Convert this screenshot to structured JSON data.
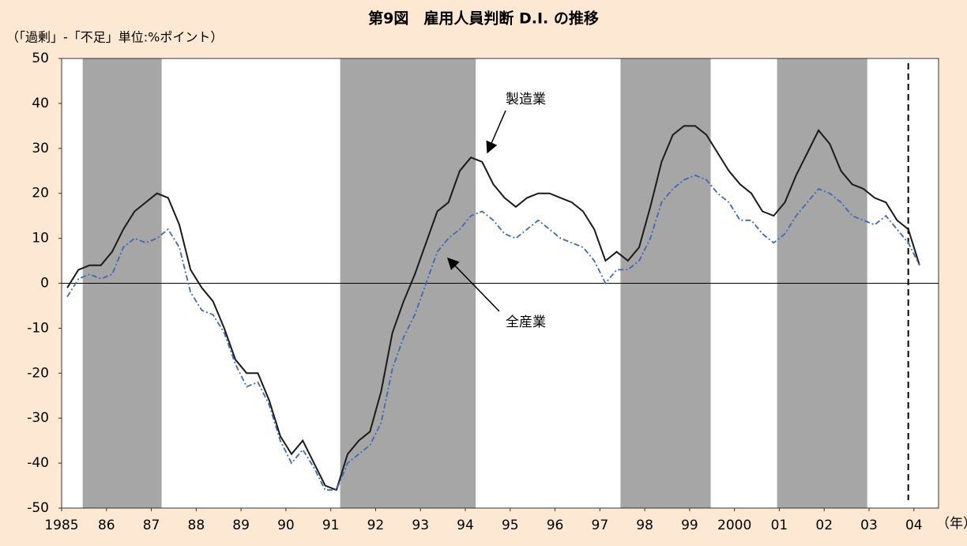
{
  "chart_data": {
    "type": "line",
    "title": "第9図　雇用人員判断 D.I. の推移",
    "ylabel": "（「過剰」-「不足」単位:%ポイント）",
    "xlabel": "（年）",
    "x": [
      1985.125,
      1985.375,
      1985.625,
      1985.875,
      1986.125,
      1986.375,
      1986.625,
      1986.875,
      1987.125,
      1987.375,
      1987.625,
      1987.875,
      1988.125,
      1988.375,
      1988.625,
      1988.875,
      1989.125,
      1989.375,
      1989.625,
      1989.875,
      1990.125,
      1990.375,
      1990.625,
      1990.875,
      1991.125,
      1991.375,
      1991.625,
      1991.875,
      1992.125,
      1992.375,
      1992.625,
      1992.875,
      1993.125,
      1993.375,
      1993.625,
      1993.875,
      1994.125,
      1994.375,
      1994.625,
      1994.875,
      1995.125,
      1995.375,
      1995.625,
      1995.875,
      1996.125,
      1996.375,
      1996.625,
      1996.875,
      1997.125,
      1997.375,
      1997.625,
      1997.875,
      1998.125,
      1998.375,
      1998.625,
      1998.875,
      1999.125,
      1999.375,
      1999.625,
      1999.875,
      2000.125,
      2000.375,
      2000.625,
      2000.875,
      2001.125,
      2001.375,
      2001.625,
      2001.875,
      2002.125,
      2002.375,
      2002.625,
      2002.875,
      2003.125,
      2003.375,
      2003.625,
      2003.875,
      2004.125
    ],
    "series": [
      {
        "name": "製造業",
        "color": "#1a1a1a",
        "dash": "solid",
        "values": [
          -1,
          3,
          4,
          4,
          7,
          12,
          16,
          18,
          20,
          19,
          13,
          3,
          -1,
          -4,
          -10,
          -17,
          -20,
          -20,
          -26,
          -34,
          -38,
          -35,
          -40,
          -45,
          -46,
          -38,
          -35,
          -33,
          -24,
          -11,
          -4,
          2,
          9,
          16,
          18,
          25,
          28,
          27,
          22,
          19,
          17,
          19,
          20,
          20,
          19,
          18,
          16,
          12,
          5,
          7,
          5,
          8,
          17,
          27,
          33,
          35,
          35,
          33,
          29,
          25,
          22,
          20,
          16,
          15,
          18,
          24,
          29,
          34,
          31,
          25,
          22,
          21,
          19,
          18,
          14,
          12,
          4
        ]
      },
      {
        "name": "全産業",
        "color": "#3d6ab5",
        "dash": "dashdot",
        "values": [
          -3,
          1,
          2,
          1,
          2,
          8,
          10,
          9,
          10,
          12,
          8,
          -2,
          -6,
          -7,
          -11,
          -18,
          -23,
          -22,
          -27,
          -35,
          -40,
          -37,
          -41,
          -46,
          -46,
          -40,
          -38,
          -36,
          -31,
          -19,
          -12,
          -7,
          0,
          7,
          10,
          12,
          15,
          16,
          14,
          11,
          10,
          12,
          14,
          12,
          10,
          9,
          8,
          5,
          0,
          3,
          3,
          5,
          10,
          18,
          21,
          23,
          24,
          23,
          20,
          18,
          14,
          14,
          11,
          9,
          11,
          15,
          18,
          21,
          20,
          18,
          15,
          14,
          13,
          15,
          12,
          9,
          4
        ]
      }
    ],
    "xlim": [
      1985,
      2004.55
    ],
    "ylim": [
      -50,
      50
    ],
    "xticks": [
      {
        "value": 1985,
        "label": "1985"
      },
      {
        "value": 1986,
        "label": "86"
      },
      {
        "value": 1987,
        "label": "87"
      },
      {
        "value": 1988,
        "label": "88"
      },
      {
        "value": 1989,
        "label": "89"
      },
      {
        "value": 1990,
        "label": "90"
      },
      {
        "value": 1991,
        "label": "91"
      },
      {
        "value": 1992,
        "label": "92"
      },
      {
        "value": 1993,
        "label": "93"
      },
      {
        "value": 1994,
        "label": "94"
      },
      {
        "value": 1995,
        "label": "95"
      },
      {
        "value": 1996,
        "label": "96"
      },
      {
        "value": 1997,
        "label": "97"
      },
      {
        "value": 1998,
        "label": "98"
      },
      {
        "value": 1999,
        "label": "99"
      },
      {
        "value": 2000,
        "label": "2000"
      },
      {
        "value": 2001,
        "label": "01"
      },
      {
        "value": 2002,
        "label": "02"
      },
      {
        "value": 2003,
        "label": "03"
      },
      {
        "value": 2004,
        "label": "04"
      }
    ],
    "yticks": [
      -50,
      -40,
      -30,
      -20,
      -10,
      0,
      10,
      20,
      30,
      40,
      50
    ],
    "bands": [
      [
        1985.47,
        1987.23
      ],
      [
        1991.21,
        1994.23
      ],
      [
        1997.46,
        1999.47
      ],
      [
        2000.95,
        2002.96
      ]
    ],
    "band_color": "#a6a6a6",
    "vline": 2003.875,
    "annotations": [
      {
        "text": "製造業",
        "series": 0,
        "point": 37
      },
      {
        "text": "全産業",
        "series": 1,
        "point": 34
      }
    ]
  }
}
